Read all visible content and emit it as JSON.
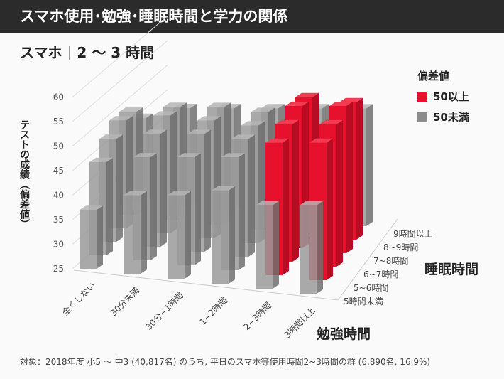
{
  "header": {
    "title": "スマホ使用･勉強･睡眠時間と学力の関係"
  },
  "subtitle": {
    "left": "スマホ",
    "right": "2 ～ 3 時間"
  },
  "footnote": "対象：2018年度 小5 ～ 中3 (40,817名) のうち, 平日のスマホ等使用時間2~3時間の群 (6,890名, 16.9%)",
  "chart_data": {
    "type": "bar",
    "variant": "3d-grouped",
    "ylabel": "テストの成績（偏差値）",
    "xlabel": "勉強時間",
    "zlabel": "睡眠時間",
    "ylim": [
      25,
      60
    ],
    "yticks": [
      25,
      30,
      35,
      40,
      45,
      50,
      55,
      60
    ],
    "categories": [
      "全くしない",
      "30分未満",
      "30分~1時間",
      "1~2時間",
      "2~3時間",
      "3時間以上"
    ],
    "depth_categories": [
      "5時間未満",
      "5~6時間",
      "6~7時間",
      "7~8時間",
      "8~9時間",
      "9時間以上"
    ],
    "series": [
      {
        "name": "5時間未満",
        "values": [
          37,
          41,
          42,
          44,
          42,
          43
        ]
      },
      {
        "name": "5~6時間",
        "values": [
          44,
          46,
          47,
          48,
          52,
          53
        ]
      },
      {
        "name": "6~7時間",
        "values": [
          46,
          48,
          49,
          49,
          53,
          54
        ]
      },
      {
        "name": "7~8時間",
        "values": [
          47,
          49,
          49,
          49,
          54,
          55
        ]
      },
      {
        "name": "8~9時間",
        "values": [
          46,
          48,
          49,
          49,
          53,
          53
        ]
      },
      {
        "name": "9時間以上",
        "values": [
          42,
          45,
          46,
          47,
          48,
          49
        ]
      }
    ],
    "legend": {
      "title": "偏差値",
      "position": "top-right",
      "items": [
        {
          "label": "50以上",
          "color": "#e8112d"
        },
        {
          "label": "50未満",
          "color": "#8c8c8c"
        }
      ]
    },
    "threshold": 50,
    "grid": true
  }
}
